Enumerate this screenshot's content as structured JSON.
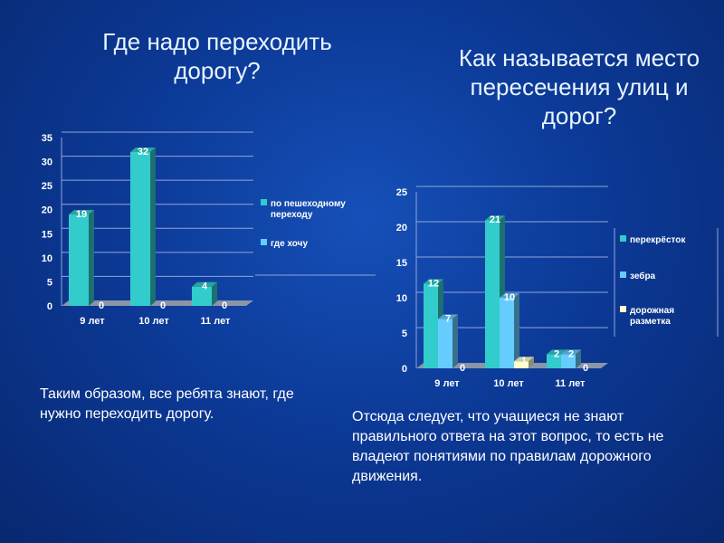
{
  "slide": {
    "title_left": "Где надо переходить дорогу?",
    "title_right": "Как называется место пересечения улиц и дорог?",
    "note_left": "Таким образом, все ребята знают, где нужно переходить дорогу.",
    "note_right": "Отсюда следует, что  учащиеся не знают правильного ответа на этот вопрос, то есть не владеют понятиями по правилам дорожного движения."
  },
  "chart_data": [
    {
      "type": "bar",
      "title": "Где надо переходить дорогу?",
      "categories": [
        "9 лет",
        "10 лет",
        "11 лет"
      ],
      "series": [
        {
          "name": "по пешеходному переходу",
          "values": [
            19,
            32,
            4
          ],
          "color": "#33cccc"
        },
        {
          "name": "где хочу",
          "values": [
            0,
            0,
            0
          ],
          "color": "#66ccff"
        }
      ],
      "ylim": [
        0,
        35
      ],
      "yticks": [
        0,
        5,
        10,
        15,
        20,
        25,
        30,
        35
      ],
      "legend": "right"
    },
    {
      "type": "bar",
      "title": "Как называется место пересечения улиц и дорог?",
      "categories": [
        "9 лет",
        "10 лет",
        "11 лет"
      ],
      "series": [
        {
          "name": "перекрёсток",
          "values": [
            12,
            21,
            2
          ],
          "color": "#33cccc"
        },
        {
          "name": "зебра",
          "values": [
            7,
            10,
            2
          ],
          "color": "#66ccff"
        },
        {
          "name": "дорожная разметка",
          "values": [
            0,
            1,
            0
          ],
          "color": "#ffffcc"
        }
      ],
      "ylim": [
        0,
        25
      ],
      "yticks": [
        0,
        5,
        10,
        15,
        20,
        25
      ],
      "legend": "right"
    }
  ]
}
